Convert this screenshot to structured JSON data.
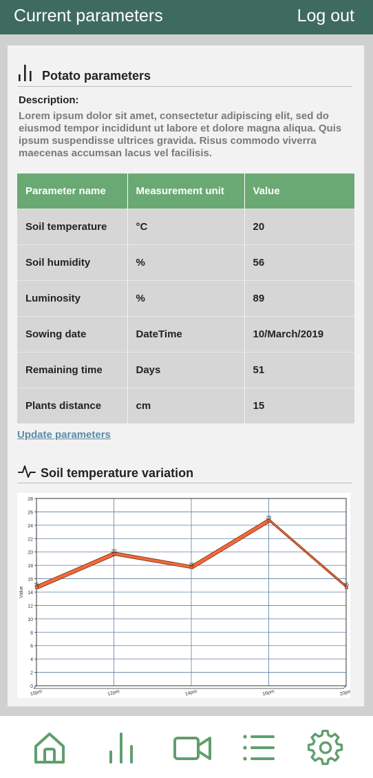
{
  "header": {
    "title": "Current parameters",
    "logout_label": "Log out"
  },
  "section": {
    "title": "Potato parameters",
    "description_label": "Description:",
    "description": "Lorem ipsum dolor sit amet, consectetur adipiscing elit, sed do eiusmod tempor incididunt ut labore et dolore magna aliqua. Quis ipsum suspendisse ultrices gravida. Risus commodo viverra maecenas accumsan lacus vel facilisis."
  },
  "table": {
    "headers": [
      "Parameter name",
      "Measurement unit",
      "Value"
    ],
    "rows": [
      [
        "Soil temperature",
        "°C",
        "20"
      ],
      [
        "Soil humidity",
        "%",
        "56"
      ],
      [
        "Luminosity",
        "%",
        "89"
      ],
      [
        "Sowing date",
        "DateTime",
        "10/March/2019"
      ],
      [
        "Remaining time",
        "Days",
        "51"
      ],
      [
        "Plants distance",
        "cm",
        "15"
      ]
    ]
  },
  "update_link": "Update parameters",
  "chart_section": {
    "title": "Soil temperature variation"
  },
  "chart_data": {
    "type": "line",
    "title": "",
    "xlabel": "",
    "ylabel": "Value",
    "categories": [
      "10pm",
      "12pm",
      "14pm",
      "16pm",
      "20pm"
    ],
    "series": [
      {
        "values": [
          15,
          20,
          18,
          25,
          15
        ]
      }
    ],
    "ylim": [
      0,
      28
    ],
    "yticks": [
      0,
      2,
      4,
      6,
      8,
      10,
      12,
      14,
      16,
      18,
      20,
      22,
      24,
      26,
      28
    ],
    "grid": true,
    "line_color": "#f06a3a"
  },
  "nav": {
    "items": [
      {
        "icon": "home-icon"
      },
      {
        "icon": "bar-chart-icon"
      },
      {
        "icon": "video-camera-icon"
      },
      {
        "icon": "list-icon"
      },
      {
        "icon": "settings-gear-icon"
      }
    ],
    "accent": "#5f9e6e"
  }
}
